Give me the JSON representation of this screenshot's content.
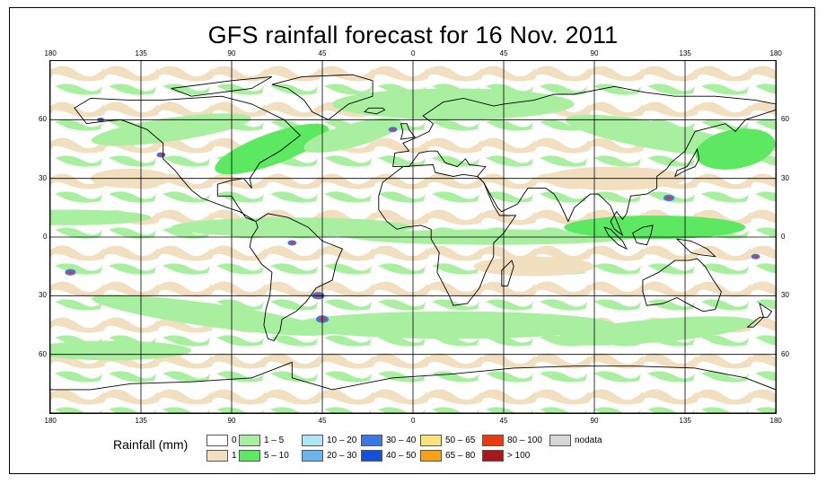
{
  "title": "GFS rainfall forecast for 16 Nov. 2011",
  "lon_ticks": [
    "180",
    "135",
    "90",
    "45",
    "0",
    "45",
    "90",
    "135",
    "180"
  ],
  "lat_ticks": [
    "60",
    "30",
    "0",
    "30",
    "60"
  ],
  "legend": {
    "title": "Rainfall (mm)",
    "items": [
      {
        "label": "0",
        "color": "#ffffff"
      },
      {
        "label": "1",
        "color": "#f2dfc0"
      },
      {
        "label": "1 – 5",
        "color": "#a8f0a0"
      },
      {
        "label": "5 – 10",
        "color": "#5ce860"
      },
      {
        "label": "10 – 20",
        "color": "#aee6f8"
      },
      {
        "label": "20 – 30",
        "color": "#6ab4f0"
      },
      {
        "label": "30 – 40",
        "color": "#3a78e8"
      },
      {
        "label": "40 – 50",
        "color": "#1450d8"
      },
      {
        "label": "50 – 65",
        "color": "#fce27a"
      },
      {
        "label": "65 – 80",
        "color": "#f8a018"
      },
      {
        "label": "80 – 100",
        "color": "#ec3a10"
      },
      {
        "label": "> 100",
        "color": "#a81818"
      },
      {
        "label": "nodata",
        "color": "#d6d6d6"
      }
    ]
  },
  "colors": {
    "coastline": "#000000",
    "gridline": "#000000"
  }
}
